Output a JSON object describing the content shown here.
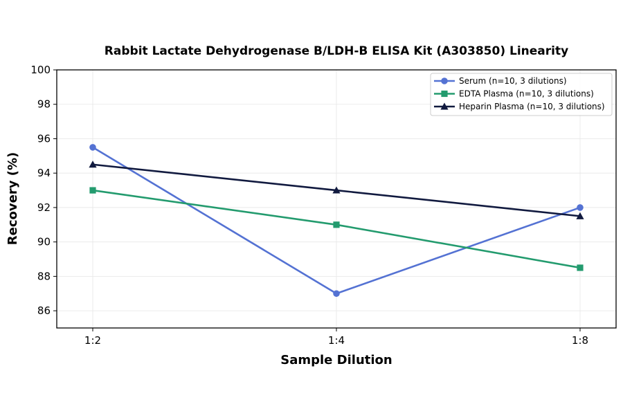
{
  "chart_data": {
    "type": "line",
    "title": "Rabbit Lactate Dehydrogenase B/LDH-B ELISA Kit (A303850) Linearity",
    "xlabel": "Sample Dilution",
    "ylabel": "Recovery (%)",
    "categories": [
      "1:2",
      "1:4",
      "1:8"
    ],
    "ylim": [
      85,
      100
    ],
    "yticks": [
      "86",
      "88",
      "90",
      "92",
      "94",
      "96",
      "98",
      "100"
    ],
    "grid": true,
    "legend_position": "top-right",
    "series": [
      {
        "name": "Serum (n=10, 3 dilutions)",
        "values": [
          95.5,
          87.0,
          92.0
        ],
        "color": "#5472d3",
        "marker": "circle"
      },
      {
        "name": "EDTA Plasma (n=10, 3 dilutions)",
        "values": [
          93.0,
          91.0,
          88.5
        ],
        "color": "#239b6e",
        "marker": "square"
      },
      {
        "name": "Heparin Plasma (n=10, 3 dilutions)",
        "values": [
          94.5,
          93.0,
          91.5
        ],
        "color": "#111a3f",
        "marker": "triangle"
      }
    ]
  }
}
